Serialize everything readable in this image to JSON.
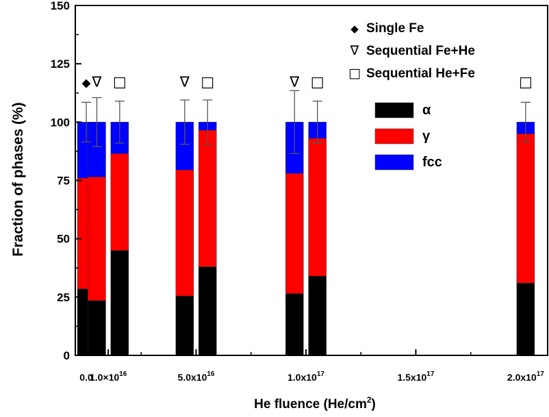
{
  "chart_data": {
    "type": "bar",
    "stacked": true,
    "xlabel": "He fluence (He/cm",
    "xlabel_sup": "2",
    "xlabel_end": ")",
    "ylabel": "Fraction of phases (%)",
    "ylim": [
      0,
      150
    ],
    "yticks": [
      0,
      25,
      50,
      75,
      100,
      125,
      150
    ],
    "xlim": [
      -0.05,
      2.1
    ],
    "x_unit_note": "x values in units of 1e17 He/cm2",
    "xticks": [
      {
        "x": 0.0,
        "base": "0.0",
        "exp": ""
      },
      {
        "x": 0.1,
        "base": "1.0×10",
        "exp": "16"
      },
      {
        "x": 0.5,
        "base": "5.0x10",
        "exp": "16"
      },
      {
        "x": 1.0,
        "base": "1.0x10",
        "exp": "17"
      },
      {
        "x": 1.5,
        "base": "1.5x10",
        "exp": "17"
      },
      {
        "x": 2.0,
        "base": "2.0x10",
        "exp": "17"
      }
    ],
    "phases": [
      {
        "name": "α",
        "color": "#000000"
      },
      {
        "name": "γ",
        "color": "#ff0000"
      },
      {
        "name": "fcc",
        "color": "#0000ff"
      }
    ],
    "bars": [
      {
        "x": 0.0,
        "x_offset": 0.0,
        "alpha": 28.5,
        "gamma": 47.5,
        "fcc": 24.0,
        "err": 8.5,
        "marker": "diamond"
      },
      {
        "x": 0.1,
        "x_offset": -0.052,
        "alpha": 23.5,
        "gamma": 53.0,
        "fcc": 23.5,
        "err": 10.5,
        "marker": "triangle"
      },
      {
        "x": 0.1,
        "x_offset": 0.052,
        "alpha": 45.0,
        "gamma": 41.5,
        "fcc": 13.5,
        "err": 9.0,
        "marker": "square"
      },
      {
        "x": 0.5,
        "x_offset": -0.052,
        "alpha": 25.5,
        "gamma": 54.0,
        "fcc": 20.5,
        "err": 9.5,
        "marker": "triangle"
      },
      {
        "x": 0.5,
        "x_offset": 0.052,
        "alpha": 38.0,
        "gamma": 58.5,
        "fcc": 3.5,
        "err": 9.5,
        "marker": "square"
      },
      {
        "x": 1.0,
        "x_offset": -0.052,
        "alpha": 26.5,
        "gamma": 51.5,
        "fcc": 22.0,
        "err": 13.5,
        "marker": "triangle"
      },
      {
        "x": 1.0,
        "x_offset": 0.052,
        "alpha": 34.0,
        "gamma": 59.0,
        "fcc": 7.0,
        "err": 9.0,
        "marker": "square"
      },
      {
        "x": 2.0,
        "x_offset": 0.0,
        "alpha": 31.0,
        "gamma": 64.0,
        "fcc": 5.0,
        "err": 8.5,
        "marker": "square"
      }
    ],
    "marker_y": 117.5,
    "marker_legend": [
      {
        "marker": "diamond",
        "symbol": "◆",
        "label": "Single Fe"
      },
      {
        "marker": "triangle",
        "symbol": "∇",
        "label": "Sequential Fe+He"
      },
      {
        "marker": "square",
        "symbol": "□",
        "label": "Sequential He+Fe"
      }
    ],
    "grid": false,
    "legend_position": "top-right"
  }
}
